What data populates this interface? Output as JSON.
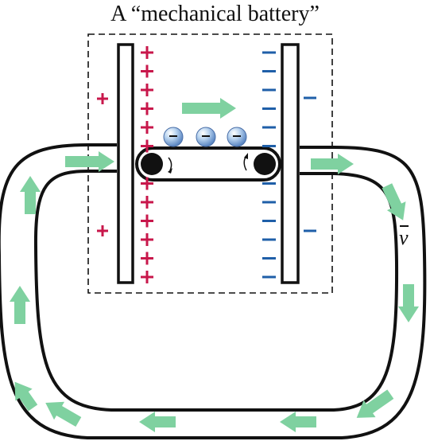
{
  "title": "A “mechanical battery”",
  "velocity_label": "v",
  "colors": {
    "positive": "#c8174b",
    "negative": "#1f5fa8",
    "flow_arrow": "#7fd1a0",
    "outline": "#111111"
  },
  "icons": {
    "charge_carrier": "electron-sphere-icon",
    "flow": "flow-arrow-icon",
    "roller": "roller-icon"
  }
}
